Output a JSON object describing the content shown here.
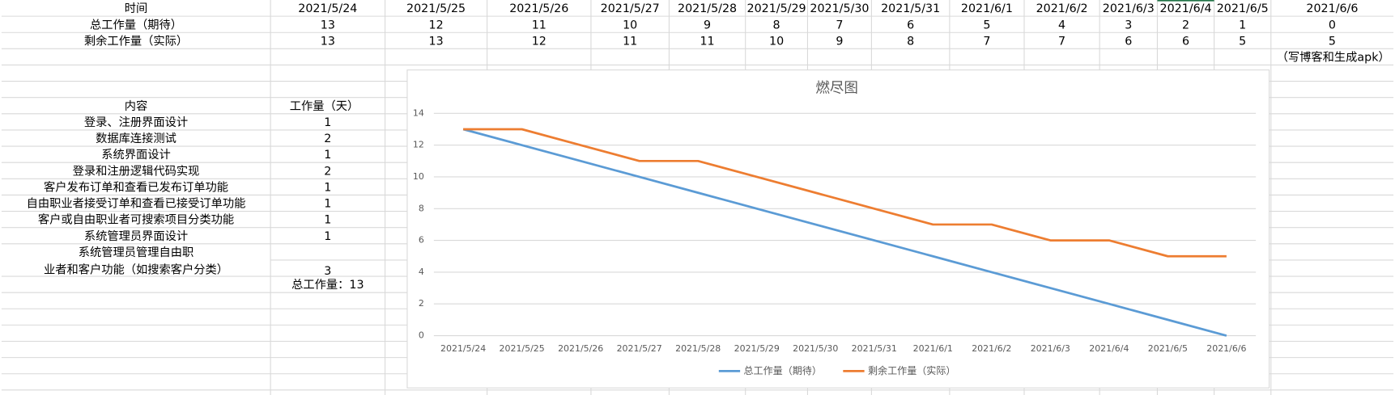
{
  "sheet": {
    "header_label": "时间",
    "dates": [
      "2021/5/24",
      "2021/5/25",
      "2021/5/26",
      "2021/5/27",
      "2021/5/28",
      "2021/5/29",
      "2021/5/30",
      "2021/5/31",
      "2021/6/1",
      "2021/6/2",
      "2021/6/3",
      "2021/6/4",
      "2021/6/5",
      "2021/6/6"
    ],
    "rows": [
      {
        "label": "总工作量（期待）",
        "values": [
          13,
          12,
          11,
          10,
          9,
          8,
          7,
          6,
          5,
          4,
          3,
          2,
          1,
          0
        ]
      },
      {
        "label": "剩余工作量（实际）",
        "values": [
          13,
          13,
          12,
          11,
          11,
          10,
          9,
          8,
          7,
          7,
          6,
          6,
          5,
          5
        ]
      }
    ],
    "note": "（写博客和生成apk）",
    "tasks_header": [
      "内容",
      "工作量（天）"
    ],
    "tasks": [
      {
        "name": [
          "登录、注册界面设计"
        ],
        "days": 1
      },
      {
        "name": [
          "数据库连接测试"
        ],
        "days": 2
      },
      {
        "name": [
          "系统界面设计"
        ],
        "days": 1
      },
      {
        "name": [
          "登录和注册逻辑代码实现"
        ],
        "days": 2
      },
      {
        "name": [
          "客户发布订单和查看已发布订单功能"
        ],
        "days": 1
      },
      {
        "name": [
          "自由职业者接受订单和查看已接受订单功能"
        ],
        "days": 1
      },
      {
        "name": [
          "客户或自由职业者可搜索项目分类功能"
        ],
        "days": 1
      },
      {
        "name": [
          "系统管理员界面设计"
        ],
        "days": 1
      },
      {
        "name": [
          "系统管理员管理自由职",
          "业者和客户功能（如搜索客户分类）"
        ],
        "days": 3
      }
    ],
    "total": "总工作量：13"
  },
  "chart_data": {
    "type": "line",
    "title": "燃尽图",
    "categories": [
      "2021/5/24",
      "2021/5/25",
      "2021/5/26",
      "2021/5/27",
      "2021/5/28",
      "2021/5/29",
      "2021/5/30",
      "2021/5/31",
      "2021/6/1",
      "2021/6/2",
      "2021/6/3",
      "2021/6/4",
      "2021/6/5",
      "2021/6/6"
    ],
    "series": [
      {
        "name": "总工作量（期待）",
        "color": "#5b9bd5",
        "values": [
          13,
          12,
          11,
          10,
          9,
          8,
          7,
          6,
          5,
          4,
          3,
          2,
          1,
          0
        ]
      },
      {
        "name": "剩余工作量（实际）",
        "color": "#ed7d31",
        "values": [
          13,
          13,
          12,
          11,
          11,
          10,
          9,
          8,
          7,
          7,
          6,
          6,
          5,
          5
        ]
      }
    ],
    "ylim": [
      0,
      14
    ],
    "yticks": [
      0,
      2,
      4,
      6,
      8,
      10,
      12,
      14
    ],
    "grid": true,
    "legend": "bottom"
  }
}
